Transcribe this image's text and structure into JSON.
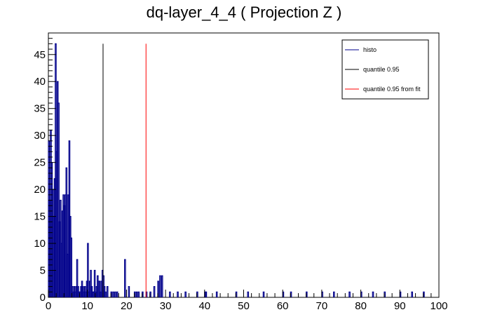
{
  "chart_data": {
    "type": "histogram",
    "title": "dq-layer_4_4 ( Projection Z )",
    "xlabel": "",
    "ylabel": "",
    "xlim": [
      0,
      100
    ],
    "ylim": [
      0,
      49
    ],
    "grid": false,
    "legend_position": "top-right",
    "x_ticks": [
      0,
      10,
      20,
      30,
      40,
      50,
      60,
      70,
      80,
      90,
      100
    ],
    "y_ticks": [
      0,
      5,
      10,
      15,
      20,
      25,
      30,
      35,
      40,
      45
    ],
    "bin_width": 0.25,
    "series": [
      {
        "name": "histo",
        "color": "#00008b",
        "x": [
          0.125,
          0.375,
          0.625,
          0.875,
          1.125,
          1.375,
          1.625,
          1.875,
          2.125,
          2.375,
          2.625,
          2.875,
          3.125,
          3.375,
          3.625,
          3.875,
          4.125,
          4.375,
          4.625,
          4.875,
          5.125,
          5.375,
          5.625,
          5.875,
          6.125,
          6.375,
          6.625,
          6.875,
          7.125,
          7.375,
          7.625,
          7.875,
          8.125,
          8.375,
          8.625,
          8.875,
          9.125,
          9.375,
          9.625,
          9.875,
          10.125,
          10.375,
          10.625,
          10.875,
          11.125,
          11.375,
          11.625,
          11.875,
          12.125,
          12.375,
          12.625,
          12.875,
          13.125,
          13.375,
          13.625,
          13.875,
          14.125,
          14.375,
          14.625,
          15.125,
          16.125,
          16.625,
          17.125,
          17.625,
          19.625,
          20.625,
          22.125,
          22.625,
          23.125,
          24.125,
          25.125,
          26.125,
          27.125,
          28.125,
          28.625,
          29.125,
          31.125,
          33.125,
          35.125,
          38.125,
          40.125,
          40.375,
          43.125,
          48.125,
          51.125,
          55.125,
          60.125,
          62.125,
          66.125,
          70.125,
          73.125,
          77.125,
          80.125,
          83.125,
          86.125,
          90.125,
          93.125,
          96.125
        ],
        "values": [
          29,
          18,
          31,
          25,
          20,
          15,
          22,
          47,
          27,
          40,
          36,
          14,
          18,
          10,
          16,
          19,
          17,
          19,
          24,
          8,
          19,
          29,
          15,
          11,
          2,
          1,
          2,
          1,
          2,
          7,
          2,
          1,
          1,
          2,
          3,
          2,
          1,
          2,
          1,
          3,
          10,
          1,
          3,
          5,
          2,
          1,
          1,
          5,
          1,
          2,
          4,
          3,
          3,
          1,
          3,
          5,
          4,
          2,
          1,
          2,
          1,
          1,
          1,
          1,
          7,
          2,
          1,
          1,
          1,
          1,
          1,
          1,
          2,
          3,
          4,
          4,
          1,
          1,
          1,
          1,
          1,
          1,
          1,
          1,
          1,
          1,
          1,
          1,
          1,
          1,
          1,
          1,
          1,
          1,
          1,
          1,
          1,
          1
        ]
      },
      {
        "name": "quantile 0.95",
        "color": "#000000",
        "x_value": 14.0,
        "y_range": [
          0,
          47
        ]
      },
      {
        "name": "quantile 0.95 from fit",
        "color": "#ff0000",
        "x_value": 25.0,
        "y_range": [
          0,
          47
        ]
      }
    ]
  }
}
